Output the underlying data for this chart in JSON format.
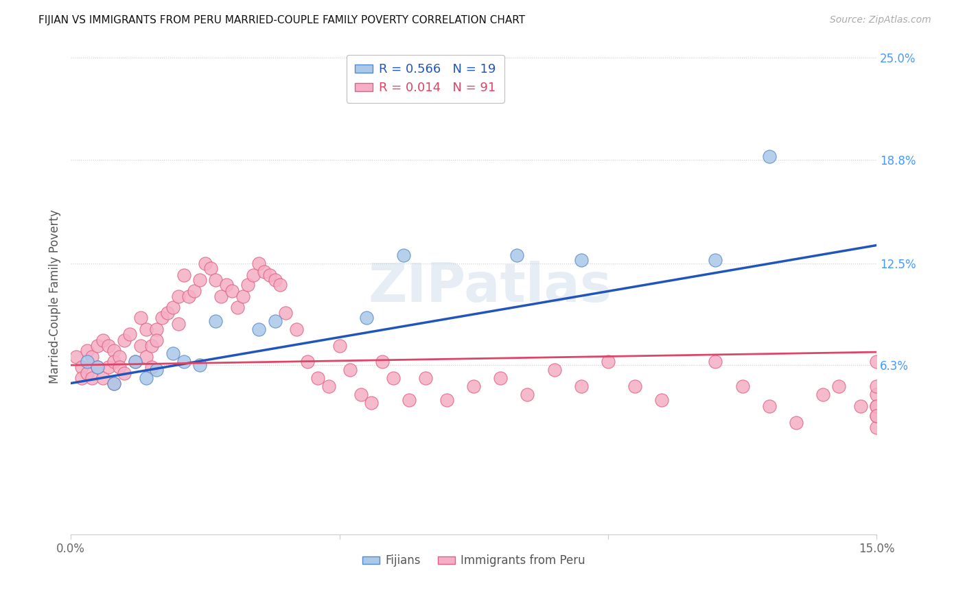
{
  "title": "FIJIAN VS IMMIGRANTS FROM PERU MARRIED-COUPLE FAMILY POVERTY CORRELATION CHART",
  "source": "Source: ZipAtlas.com",
  "ylabel": "Married-Couple Family Poverty",
  "xlim": [
    0.0,
    0.15
  ],
  "ylim": [
    -0.04,
    0.25
  ],
  "ytick_positions": [
    0.063,
    0.125,
    0.188,
    0.25
  ],
  "ytick_right_labels": [
    "6.3%",
    "12.5%",
    "18.8%",
    "25.0%"
  ],
  "xtick_positions": [
    0.0,
    0.05,
    0.1,
    0.15
  ],
  "xtick_labels": [
    "0.0%",
    "",
    "",
    "15.0%"
  ],
  "fijian_color": "#aac8e8",
  "peru_color": "#f5aec5",
  "fijian_edge": "#5588cc",
  "peru_edge": "#e06080",
  "trend_blue": "#2255bb",
  "trend_pink": "#dd4466",
  "watermark": "ZIPatlas",
  "fijian_x": [
    0.003,
    0.005,
    0.008,
    0.012,
    0.014,
    0.016,
    0.019,
    0.021,
    0.024,
    0.027,
    0.035,
    0.038,
    0.055,
    0.062,
    0.083,
    0.095,
    0.12,
    0.13
  ],
  "fijian_y": [
    0.065,
    0.062,
    0.052,
    0.065,
    0.055,
    0.06,
    0.07,
    0.065,
    0.063,
    0.09,
    0.085,
    0.09,
    0.092,
    0.13,
    0.13,
    0.127,
    0.127,
    0.19
  ],
  "peru_x": [
    0.001,
    0.002,
    0.002,
    0.003,
    0.003,
    0.004,
    0.004,
    0.005,
    0.005,
    0.006,
    0.006,
    0.007,
    0.007,
    0.008,
    0.008,
    0.008,
    0.009,
    0.009,
    0.01,
    0.01,
    0.011,
    0.012,
    0.013,
    0.013,
    0.014,
    0.014,
    0.015,
    0.015,
    0.016,
    0.016,
    0.017,
    0.018,
    0.019,
    0.02,
    0.02,
    0.021,
    0.022,
    0.023,
    0.024,
    0.025,
    0.026,
    0.027,
    0.028,
    0.029,
    0.03,
    0.031,
    0.032,
    0.033,
    0.034,
    0.035,
    0.036,
    0.037,
    0.038,
    0.039,
    0.04,
    0.042,
    0.044,
    0.046,
    0.048,
    0.05,
    0.052,
    0.054,
    0.056,
    0.058,
    0.06,
    0.063,
    0.066,
    0.07,
    0.075,
    0.08,
    0.085,
    0.09,
    0.095,
    0.1,
    0.105,
    0.11,
    0.12,
    0.125,
    0.13,
    0.135,
    0.14,
    0.143,
    0.147,
    0.15,
    0.15,
    0.15,
    0.15,
    0.15,
    0.15,
    0.15,
    0.15
  ],
  "peru_y": [
    0.068,
    0.062,
    0.055,
    0.072,
    0.058,
    0.068,
    0.055,
    0.075,
    0.062,
    0.078,
    0.055,
    0.075,
    0.062,
    0.072,
    0.065,
    0.052,
    0.068,
    0.062,
    0.078,
    0.058,
    0.082,
    0.065,
    0.092,
    0.075,
    0.085,
    0.068,
    0.075,
    0.062,
    0.085,
    0.078,
    0.092,
    0.095,
    0.098,
    0.105,
    0.088,
    0.118,
    0.105,
    0.108,
    0.115,
    0.125,
    0.122,
    0.115,
    0.105,
    0.112,
    0.108,
    0.098,
    0.105,
    0.112,
    0.118,
    0.125,
    0.12,
    0.118,
    0.115,
    0.112,
    0.095,
    0.085,
    0.065,
    0.055,
    0.05,
    0.075,
    0.06,
    0.045,
    0.04,
    0.065,
    0.055,
    0.042,
    0.055,
    0.042,
    0.05,
    0.055,
    0.045,
    0.06,
    0.05,
    0.065,
    0.05,
    0.042,
    0.065,
    0.05,
    0.038,
    0.028,
    0.045,
    0.05,
    0.038,
    0.025,
    0.032,
    0.038,
    0.045,
    0.05,
    0.038,
    0.032,
    0.065
  ],
  "trend_fijian_x0": 0.0,
  "trend_fijian_y0": 0.052,
  "trend_fijian_x1": 0.15,
  "trend_fijian_y1": 0.136,
  "trend_peru_x0": 0.0,
  "trend_peru_y0": 0.063,
  "trend_peru_x1": 0.15,
  "trend_peru_y1": 0.071
}
